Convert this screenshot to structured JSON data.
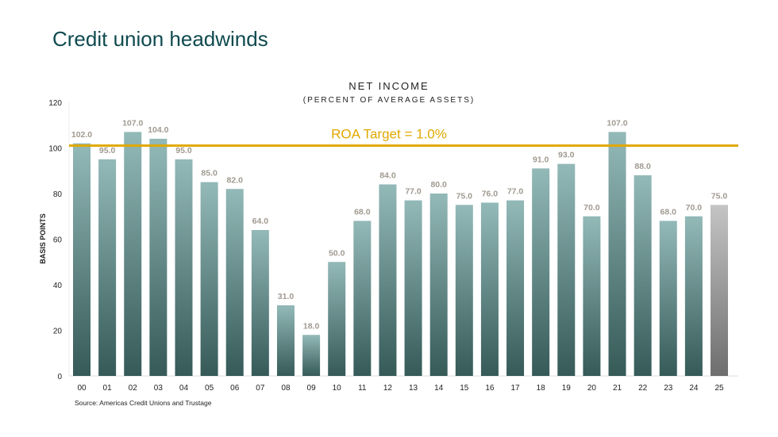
{
  "slide": {
    "title": "Credit union headwinds"
  },
  "chart_data": {
    "type": "bar",
    "title": "NET INCOME",
    "subtitle": "(PERCENT OF AVERAGE ASSETS)",
    "xlabel": "",
    "ylabel": "BASIS POINTS",
    "ylim": [
      0,
      120
    ],
    "yticks": [
      0,
      20,
      40,
      60,
      80,
      100,
      120
    ],
    "grid": false,
    "categories": [
      "00",
      "01",
      "02",
      "03",
      "04",
      "05",
      "06",
      "07",
      "08",
      "09",
      "10",
      "11",
      "12",
      "13",
      "14",
      "15",
      "16",
      "17",
      "18",
      "19",
      "20",
      "21",
      "22",
      "23",
      "24",
      "25"
    ],
    "values": [
      102,
      95,
      107,
      104,
      95,
      85,
      82,
      64,
      31,
      18,
      50,
      68,
      84,
      77,
      80,
      75,
      76,
      77,
      91,
      93,
      70,
      107,
      88,
      68,
      70,
      75
    ],
    "data_labels": [
      "102.0",
      "95.0",
      "107.0",
      "104.0",
      "95.0",
      "85.0",
      "82.0",
      "64.0",
      "31.0",
      "18.0",
      "50.0",
      "68.0",
      "84.0",
      "77.0",
      "80.0",
      "75.0",
      "76.0",
      "77.0",
      "91.0",
      "93.0",
      "70.0",
      "107.0",
      "88.0",
      "68.0",
      "70.0",
      "75.0"
    ],
    "highlight_last_bar": true,
    "colors": {
      "bar_top": "#93b9b8",
      "bar_bottom": "#355a58",
      "last_top": "#c4c4c4",
      "last_bottom": "#6e6e6e",
      "target_line": "#e0a800"
    },
    "reference_line": {
      "label": "ROA Target = 1.0%",
      "value": 101
    },
    "source": "Source: Americas Credit Unions and Trustage"
  }
}
